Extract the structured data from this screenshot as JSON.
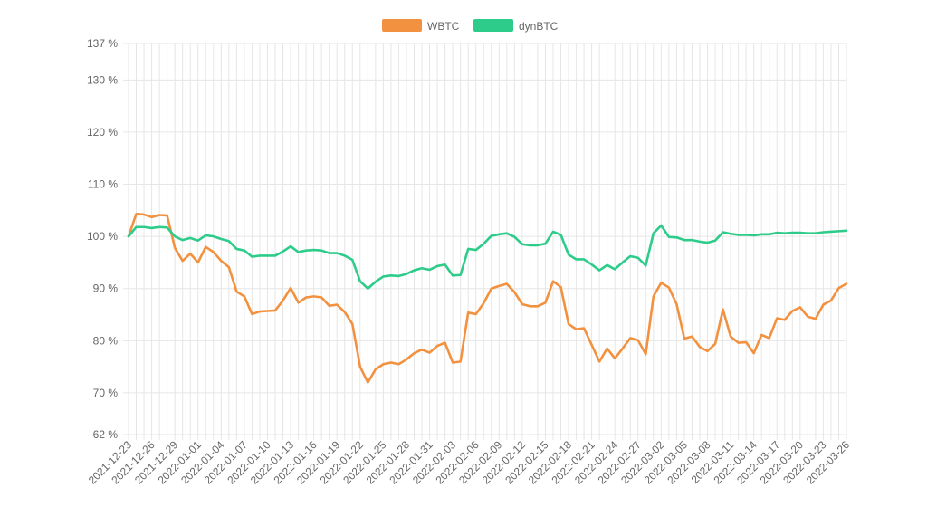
{
  "chart_data": {
    "type": "line",
    "title": "",
    "xlabel": "",
    "ylabel": "",
    "ylim": [
      62,
      137
    ],
    "y_ticks": [
      "137 %",
      "130 %",
      "120 %",
      "110 %",
      "100 %",
      "90 %",
      "80 %",
      "70 %",
      "62 %"
    ],
    "y_tick_values": [
      137,
      130,
      120,
      110,
      100,
      90,
      80,
      70,
      62
    ],
    "x_tick_labels": [
      "2021-12-23",
      "2021-12-26",
      "2021-12-29",
      "2022-01-01",
      "2022-01-04",
      "2022-01-07",
      "2022-01-10",
      "2022-01-13",
      "2022-01-16",
      "2022-01-19",
      "2022-01-22",
      "2022-01-25",
      "2022-01-28",
      "2022-01-31",
      "2022-02-03",
      "2022-02-06",
      "2022-02-09",
      "2022-02-12",
      "2022-02-15",
      "2022-02-18",
      "2022-02-21",
      "2022-02-24",
      "2022-02-27",
      "2022-03-02",
      "2022-03-05",
      "2022-03-08",
      "2022-03-11",
      "2022-03-14",
      "2022-03-17",
      "2022-03-20",
      "2022-03-23",
      "2022-03-26"
    ],
    "x_start": "2021-12-23",
    "x_end": "2022-03-26",
    "legend_position": "top",
    "grid": true,
    "series": [
      {
        "name": "WBTC",
        "color": "#f2913f",
        "values": [
          100,
          104.3,
          104.2,
          103.7,
          104.1,
          104,
          97.8,
          95.3,
          96.7,
          95,
          98,
          97,
          95.3,
          94.1,
          89.4,
          88.5,
          85.1,
          85.6,
          85.7,
          85.8,
          87.7,
          90.1,
          87.3,
          88.3,
          88.5,
          88.3,
          86.7,
          86.9,
          85.5,
          83.2,
          75,
          72,
          74.5,
          75.5,
          75.8,
          75.5,
          76.4,
          77.6,
          78.3,
          77.7,
          79,
          79.6,
          75.8,
          76,
          85.4,
          85.1,
          87.2,
          90,
          90.5,
          90.9,
          89.3,
          87,
          86.6,
          86.6,
          87.3,
          91.4,
          90.3,
          83.2,
          82.2,
          82.4,
          79.2,
          76,
          78.5,
          76.6,
          78.5,
          80.5,
          80.1,
          77.4,
          88.5,
          91.1,
          90.2,
          87,
          80.4,
          80.8,
          78.8,
          78,
          79.4,
          86,
          80.8,
          79.6,
          79.7,
          77.6,
          81.1,
          80.5,
          84.3,
          84,
          85.7,
          86.4,
          84.6,
          84.2,
          86.9,
          87.7,
          90.1,
          90.9
        ]
      },
      {
        "name": "dynBTC",
        "color": "#2ecc8a",
        "values": [
          100,
          101.8,
          101.8,
          101.6,
          101.8,
          101.7,
          100,
          99.3,
          99.7,
          99.2,
          100.2,
          100,
          99.5,
          99.1,
          97.6,
          97.3,
          96.1,
          96.3,
          96.3,
          96.3,
          97.1,
          98.1,
          97,
          97.3,
          97.4,
          97.3,
          96.8,
          96.8,
          96.3,
          95.5,
          91.4,
          90,
          91.3,
          92.3,
          92.5,
          92.4,
          92.8,
          93.5,
          93.9,
          93.6,
          94.3,
          94.6,
          92.5,
          92.6,
          97.6,
          97.4,
          98.6,
          100.1,
          100.4,
          100.6,
          99.9,
          98.5,
          98.3,
          98.3,
          98.6,
          100.9,
          100.3,
          96.5,
          95.6,
          95.6,
          94.6,
          93.5,
          94.5,
          93.7,
          95,
          96.2,
          95.9,
          94.4,
          100.6,
          102.1,
          99.9,
          99.8,
          99.3,
          99.3,
          99,
          98.8,
          99.2,
          100.8,
          100.5,
          100.3,
          100.3,
          100.2,
          100.4,
          100.4,
          100.7,
          100.6,
          100.7,
          100.7,
          100.6,
          100.6,
          100.8,
          100.9,
          101,
          101.1
        ]
      }
    ]
  }
}
